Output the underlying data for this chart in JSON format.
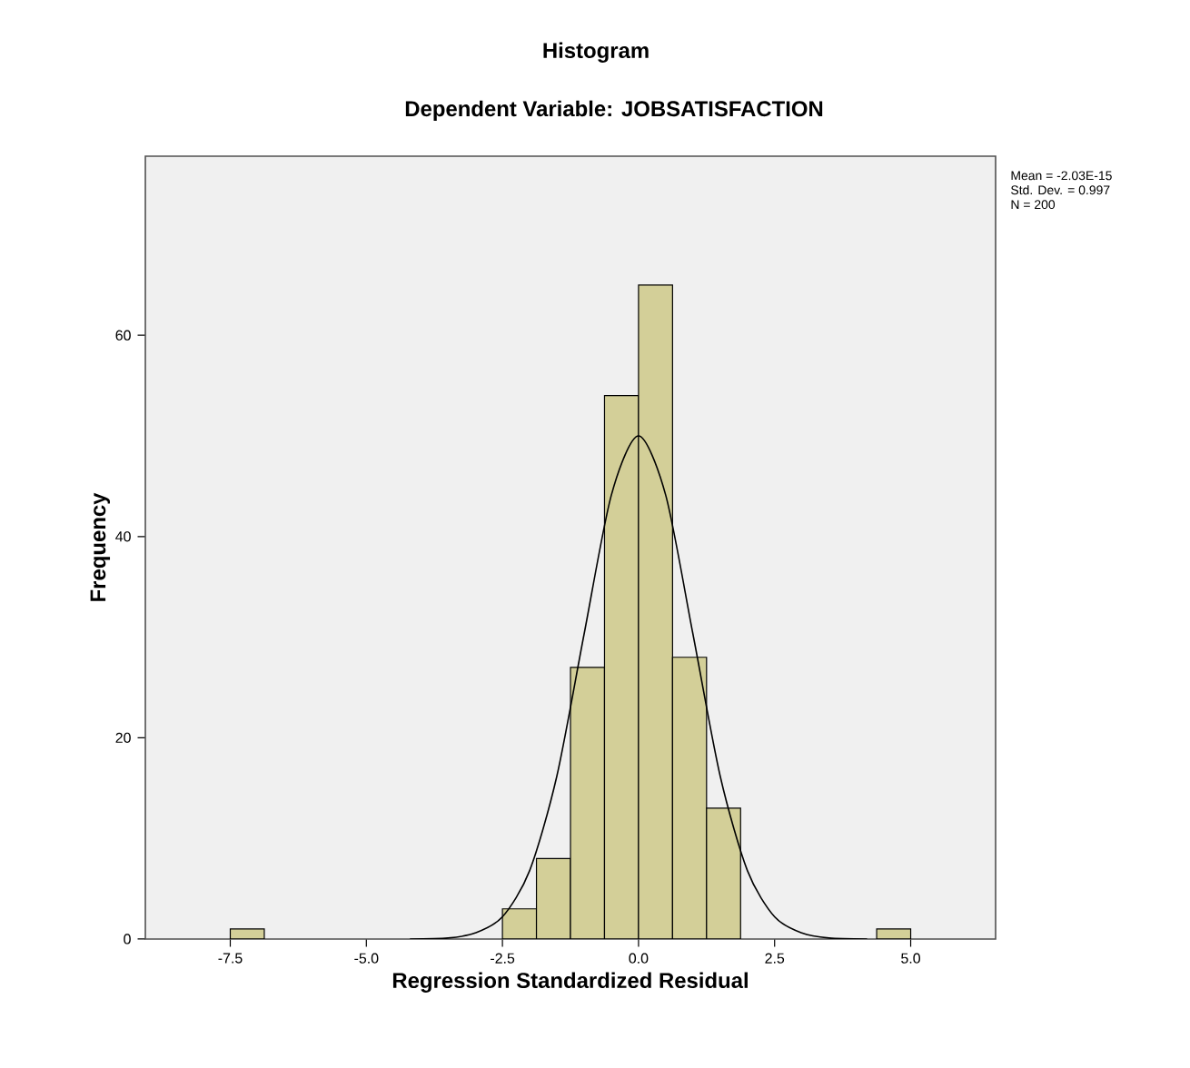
{
  "chart_data": {
    "type": "histogram",
    "title": "Histogram",
    "subtitle": "Dependent Variable: JOBSATISFACTION",
    "xlabel": "Regression Standardized Residual",
    "ylabel": "Frequency",
    "annotations": [
      "Mean = -2.03E-15",
      "Std. Dev. = 0.997",
      "N = 200"
    ],
    "bins": [
      -7.5,
      -6.875,
      -6.25,
      -5.625,
      -5.0,
      -4.375,
      -3.75,
      -3.125,
      -2.5,
      -1.875,
      -1.25,
      -0.625,
      0.0,
      0.625,
      1.25,
      1.875,
      2.5,
      3.125,
      3.75,
      4.375,
      5.0
    ],
    "values": [
      1,
      0,
      0,
      0,
      0,
      0,
      0,
      0,
      3,
      8,
      27,
      54,
      65,
      28,
      13,
      0,
      0,
      0,
      0,
      1
    ],
    "color": "#d3cf98",
    "series": [
      {
        "type": "line",
        "color": "#000000",
        "x": [
          -4.2,
          -3.5,
          -3.0,
          -2.5,
          -2.0,
          -1.5,
          -1.0,
          -0.5,
          0.0,
          0.5,
          1.0,
          1.5,
          2.0,
          2.5,
          3.0,
          3.5,
          4.2
        ],
        "values": [
          0,
          0.1,
          0.6,
          2.2,
          6.8,
          16.2,
          30.3,
          44.1,
          50,
          44.1,
          30.3,
          16.2,
          6.8,
          2.2,
          0.6,
          0.1,
          0
        ]
      }
    ],
    "xlim": [
      -9.06,
      6.56
    ],
    "ylim": [
      0,
      77.8
    ],
    "xticks": [
      {
        "value": -7.5,
        "label": "-7.5"
      },
      {
        "value": -5.0,
        "label": "-5.0"
      },
      {
        "value": -2.5,
        "label": "-2.5"
      },
      {
        "value": 0.0,
        "label": "0.0"
      },
      {
        "value": 2.5,
        "label": "2.5"
      },
      {
        "value": 5.0,
        "label": "5.0"
      }
    ],
    "yticks": [
      0,
      20,
      40,
      60
    ]
  }
}
